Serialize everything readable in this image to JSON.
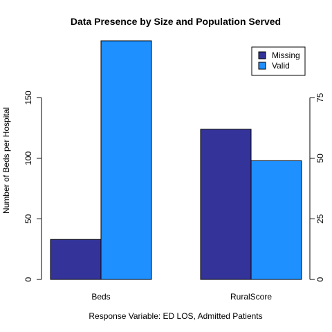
{
  "chart_data": {
    "type": "bar",
    "title": "Data Presence by Size and Population Served",
    "xlabel": "Response Variable: ED LOS, Admitted Patients",
    "ylabel_left": "Number of Beds per Hospital",
    "ylabel_right": "",
    "categories": [
      "Beds",
      "RuralScore"
    ],
    "series": [
      {
        "name": "Missing",
        "color": "#333399",
        "values": [
          33,
          62
        ]
      },
      {
        "name": "Valid",
        "color": "#1E90FF",
        "values": [
          197,
          49
        ]
      }
    ],
    "left_axis": {
      "ylim": [
        0,
        197
      ],
      "ticks": [
        0,
        50,
        100,
        150
      ],
      "applies_to": "Beds"
    },
    "right_axis": {
      "ylim": [
        0,
        98.5
      ],
      "ticks": [
        0,
        25,
        50,
        75
      ],
      "applies_to": "RuralScore"
    },
    "grid": false,
    "legend_position": "top-right"
  }
}
